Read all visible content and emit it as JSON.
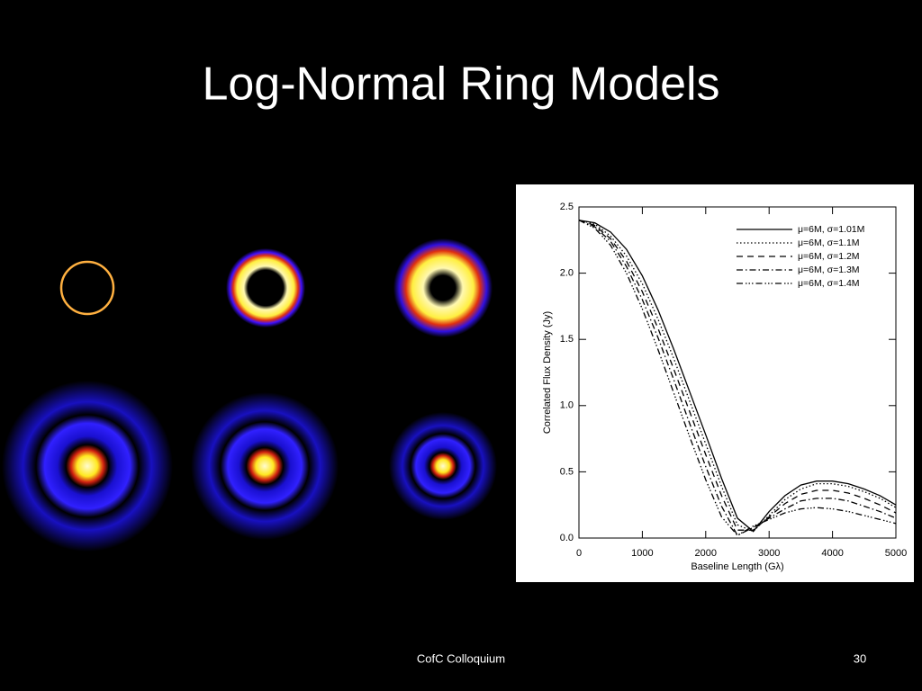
{
  "title": "Log-Normal Ring Models",
  "footer": "CofC Colloquium",
  "page_number": 30,
  "chart_data": {
    "type": "line",
    "x_label": "Baseline Length (Gλ)",
    "y_label": "Correlated Flux Density (Jy)",
    "x": [
      0,
      250,
      500,
      750,
      1000,
      1250,
      1500,
      1750,
      2000,
      2250,
      2500,
      2750,
      3000,
      3250,
      3500,
      3750,
      4000,
      4250,
      4500,
      4750,
      5000
    ],
    "xlim": [
      0,
      5000
    ],
    "xticks": [
      0,
      1000,
      2000,
      3000,
      4000,
      5000
    ],
    "ylim": [
      0,
      2.5
    ],
    "yticks": [
      {
        "value": 0,
        "label": "0.0"
      },
      0.5,
      {
        "value": 1,
        "label": "1.0"
      },
      1.5,
      {
        "value": 2,
        "label": "2.0"
      },
      2.5
    ],
    "legend": "upper right",
    "series": [
      {
        "name": "μ=6M, σ=1.01M",
        "color": "#000000",
        "dash": "solid",
        "values": [
          2.4,
          2.38,
          2.31,
          2.18,
          1.98,
          1.72,
          1.42,
          1.1,
          0.78,
          0.45,
          0.15,
          0.05,
          0.2,
          0.32,
          0.4,
          0.43,
          0.43,
          0.41,
          0.37,
          0.32,
          0.25
        ]
      },
      {
        "name": "μ=6M, σ=1.1M",
        "color": "#000000",
        "dash": "dotted",
        "values": [
          2.4,
          2.37,
          2.28,
          2.13,
          1.92,
          1.65,
          1.35,
          1.03,
          0.71,
          0.39,
          0.1,
          0.05,
          0.17,
          0.29,
          0.37,
          0.41,
          0.41,
          0.39,
          0.35,
          0.3,
          0.23
        ]
      },
      {
        "name": "μ=6M, σ=1.2M",
        "color": "#000000",
        "dash": "dashed",
        "values": [
          2.4,
          2.36,
          2.26,
          2.09,
          1.86,
          1.58,
          1.27,
          0.95,
          0.63,
          0.32,
          0.06,
          0.06,
          0.16,
          0.26,
          0.33,
          0.36,
          0.36,
          0.34,
          0.3,
          0.25,
          0.19
        ]
      },
      {
        "name": "μ=6M, σ=1.3M",
        "color": "#000000",
        "dash": "dashdot",
        "values": [
          2.4,
          2.35,
          2.24,
          2.05,
          1.8,
          1.51,
          1.19,
          0.86,
          0.54,
          0.24,
          0.02,
          0.08,
          0.15,
          0.22,
          0.28,
          0.3,
          0.3,
          0.28,
          0.24,
          0.2,
          0.15
        ]
      },
      {
        "name": "μ=6M, σ=1.4M",
        "color": "#000000",
        "dash": "dashdotdotdot",
        "values": [
          2.4,
          2.34,
          2.21,
          2.0,
          1.73,
          1.42,
          1.09,
          0.76,
          0.44,
          0.16,
          0.02,
          0.09,
          0.14,
          0.19,
          0.22,
          0.23,
          0.22,
          0.2,
          0.17,
          0.14,
          0.11
        ]
      }
    ]
  }
}
